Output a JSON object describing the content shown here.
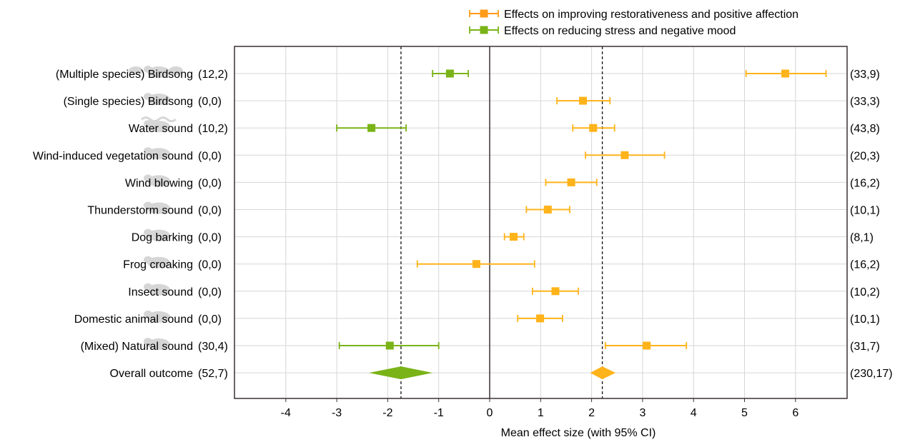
{
  "chart_data": {
    "type": "forest",
    "title": "",
    "xlabel": "Mean effect size (with 95% CI)",
    "ylabel": "",
    "xlim": [
      -5,
      7
    ],
    "xticks": [
      -4,
      -3,
      -2,
      -1,
      0,
      1,
      2,
      3,
      4,
      5,
      6
    ],
    "grid": true,
    "legend_position": "top-right",
    "series": [
      {
        "key": "positive",
        "name": "Effects on improving restorativeness and positive affection",
        "color": "#ffb31a",
        "legend_color": "#ff9a1a"
      },
      {
        "key": "stress",
        "name": "Effects on reducing stress and negative mood",
        "color": "#7ab317"
      }
    ],
    "rows": [
      {
        "label": "(Multiple species) Birdsong",
        "left_count": "(12,2)",
        "right_count": "(33,9)",
        "stress": {
          "mean": -0.78,
          "lo": -1.12,
          "hi": -0.42
        },
        "positive": {
          "mean": 5.8,
          "lo": 5.03,
          "hi": 6.6
        }
      },
      {
        "label": "(Single species) Birdsong",
        "left_count": "(0,0)",
        "right_count": "(33,3)",
        "positive": {
          "mean": 1.83,
          "lo": 1.32,
          "hi": 2.36
        }
      },
      {
        "label": "Water sound",
        "left_count": "(10,2)",
        "right_count": "(43,8)",
        "stress": {
          "mean": -2.32,
          "lo": -3.0,
          "hi": -1.64
        },
        "positive": {
          "mean": 2.03,
          "lo": 1.63,
          "hi": 2.45
        }
      },
      {
        "label": "Wind-induced vegetation sound",
        "left_count": "(0,0)",
        "right_count": "(20,3)",
        "positive": {
          "mean": 2.65,
          "lo": 1.88,
          "hi": 3.43
        }
      },
      {
        "label": "Wind blowing",
        "left_count": "(0,0)",
        "right_count": "(16,2)",
        "positive": {
          "mean": 1.6,
          "lo": 1.1,
          "hi": 2.1
        }
      },
      {
        "label": "Thunderstorm sound",
        "left_count": "(0,0)",
        "right_count": "(10,1)",
        "positive": {
          "mean": 1.14,
          "lo": 0.72,
          "hi": 1.57
        }
      },
      {
        "label": "Dog barking",
        "left_count": "(0,0)",
        "right_count": "(8,1)",
        "positive": {
          "mean": 0.47,
          "lo": 0.29,
          "hi": 0.67
        }
      },
      {
        "label": "Frog croaking",
        "left_count": "(0,0)",
        "right_count": "(16,2)",
        "positive": {
          "mean": -0.26,
          "lo": -1.42,
          "hi": 0.88
        }
      },
      {
        "label": "Insect sound",
        "left_count": "(0,0)",
        "right_count": "(10,2)",
        "positive": {
          "mean": 1.29,
          "lo": 0.84,
          "hi": 1.74
        }
      },
      {
        "label": "Domestic animal sound",
        "left_count": "(0,0)",
        "right_count": "(10,1)",
        "positive": {
          "mean": 0.99,
          "lo": 0.55,
          "hi": 1.43
        }
      },
      {
        "label": "(Mixed) Natural sound",
        "left_count": "(30,4)",
        "right_count": "(31,7)",
        "stress": {
          "mean": -1.96,
          "lo": -2.95,
          "hi": -1.0
        },
        "positive": {
          "mean": 3.08,
          "lo": 2.27,
          "hi": 3.86
        }
      }
    ],
    "overall": {
      "label": "Overall outcome",
      "left_count": "(52,7)",
      "right_count": "(230,17)",
      "stress": {
        "mean": -1.74,
        "lo": -2.37,
        "hi": -1.12
      },
      "positive": {
        "mean": 2.21,
        "lo": 1.97,
        "hi": 2.47
      }
    },
    "reference_lines": {
      "stress_mean": -1.74,
      "positive_mean": 2.21
    }
  }
}
